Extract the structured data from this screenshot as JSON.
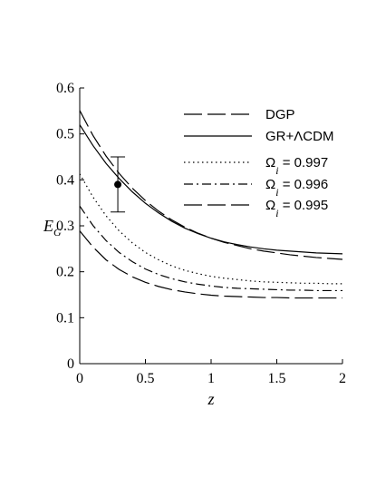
{
  "chart_data": {
    "type": "line",
    "xlabel": "z",
    "ylabel": "E",
    "ylabel_sub": "G",
    "xlim": [
      0,
      2
    ],
    "ylim": [
      0,
      0.6
    ],
    "x_ticks": [
      "0",
      "0.5",
      "1",
      "1.5",
      "2"
    ],
    "y_ticks": [
      "0",
      "0.1",
      "0.2",
      "0.3",
      "0.4",
      "0.5",
      "0.6"
    ],
    "grid": false,
    "legend_position": "top-right",
    "x": [
      0,
      0.1,
      0.2,
      0.3,
      0.4,
      0.5,
      0.6,
      0.7,
      0.8,
      0.9,
      1.0,
      1.1,
      1.2,
      1.3,
      1.4,
      1.5,
      1.6,
      1.7,
      1.8,
      1.9,
      2.0
    ],
    "series": [
      {
        "name": "DGP",
        "style": "long-dash",
        "color": "#000000",
        "values": [
          0.551,
          0.497,
          0.452,
          0.414,
          0.382,
          0.355,
          0.332,
          0.313,
          0.297,
          0.284,
          0.273,
          0.264,
          0.257,
          0.25,
          0.245,
          0.241,
          0.237,
          0.234,
          0.231,
          0.229,
          0.227
        ]
      },
      {
        "name": "GR+ΛCDM",
        "style": "solid",
        "color": "#000000",
        "values": [
          0.52,
          0.475,
          0.436,
          0.403,
          0.374,
          0.349,
          0.328,
          0.31,
          0.295,
          0.283,
          0.273,
          0.265,
          0.259,
          0.254,
          0.25,
          0.247,
          0.245,
          0.243,
          0.241,
          0.24,
          0.239
        ]
      },
      {
        "name": "Ω_i = 0.997",
        "label_main": "Ω",
        "label_sub": "i",
        "label_rest": " = 0.997",
        "style": "dotted",
        "color": "#000000",
        "values": [
          0.413,
          0.363,
          0.322,
          0.289,
          0.263,
          0.242,
          0.226,
          0.213,
          0.203,
          0.196,
          0.19,
          0.186,
          0.183,
          0.18,
          0.178,
          0.177,
          0.176,
          0.175,
          0.175,
          0.174,
          0.174
        ]
      },
      {
        "name": "Ω_i = 0.996",
        "label_main": "Ω",
        "label_sub": "i",
        "label_rest": " = 0.996",
        "style": "dash-dot",
        "color": "#000000",
        "values": [
          0.343,
          0.301,
          0.268,
          0.242,
          0.222,
          0.206,
          0.194,
          0.185,
          0.178,
          0.173,
          0.169,
          0.166,
          0.164,
          0.163,
          0.162,
          0.161,
          0.16,
          0.16,
          0.159,
          0.159,
          0.159
        ]
      },
      {
        "name": "Ω_i = 0.995",
        "label_main": "Ω",
        "label_sub": "i",
        "label_rest": " = 0.995",
        "style": "long-dash",
        "color": "#000000",
        "values": [
          0.289,
          0.254,
          0.226,
          0.205,
          0.189,
          0.177,
          0.168,
          0.161,
          0.156,
          0.152,
          0.149,
          0.147,
          0.146,
          0.145,
          0.144,
          0.144,
          0.143,
          0.143,
          0.143,
          0.143,
          0.143
        ]
      }
    ],
    "data_point": {
      "x": 0.29,
      "y": 0.39,
      "y_low": 0.33,
      "y_high": 0.45
    }
  }
}
